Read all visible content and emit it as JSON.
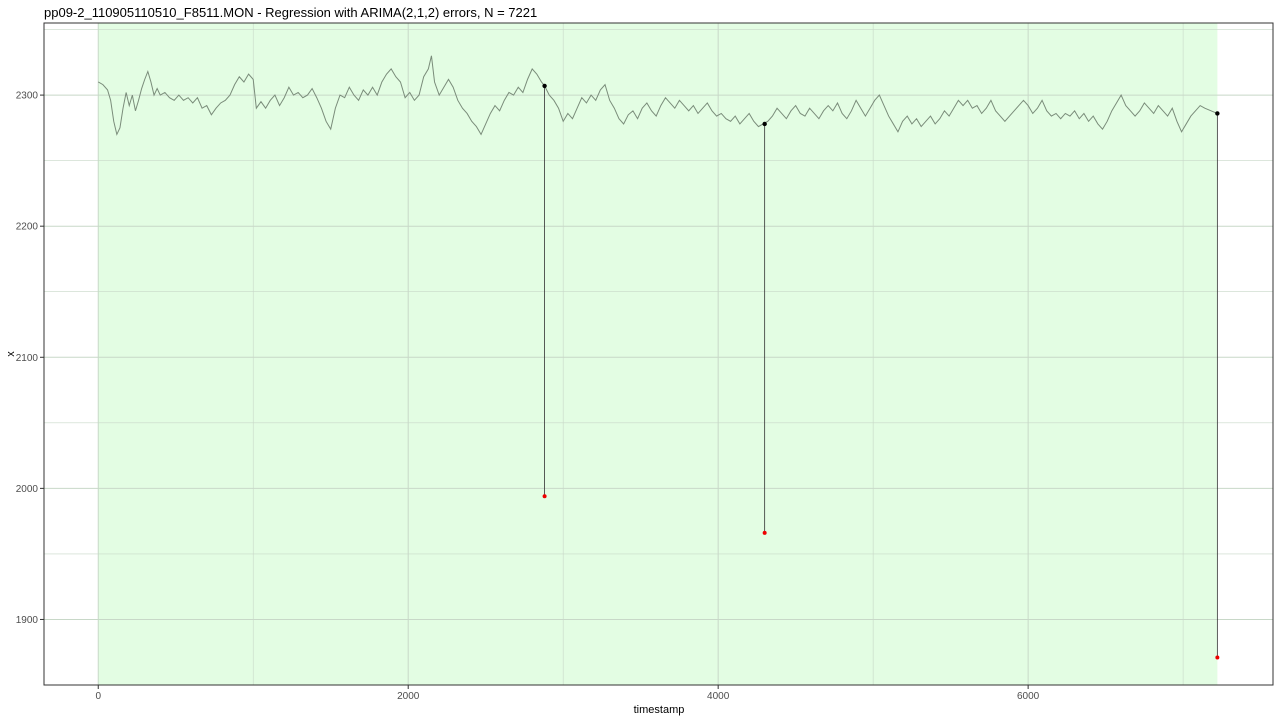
{
  "chart_data": {
    "type": "line",
    "title": "pp09-2_110905110510_F8511.MON - Regression with ARIMA(2,1,2) errors, N = 7221",
    "xlabel": "timestamp",
    "ylabel": "x",
    "xlim": [
      -350,
      7580
    ],
    "ylim": [
      1850,
      2355
    ],
    "x_ticks": [
      0,
      2000,
      4000,
      6000
    ],
    "x_tick_labels": [
      "0",
      "2000",
      "4000",
      "6000"
    ],
    "y_ticks": [
      1900,
      2000,
      2100,
      2200,
      2300
    ],
    "y_tick_labels": [
      "1900",
      "2000",
      "2100",
      "2200",
      "2300"
    ],
    "grid": true,
    "shaded_region": {
      "x_start": 0,
      "x_end": 7221,
      "color": "#e3fde3"
    },
    "series": [
      {
        "values": [
          [
            0,
            2310
          ],
          [
            30,
            2308
          ],
          [
            60,
            2304
          ],
          [
            80,
            2296
          ],
          [
            100,
            2280
          ],
          [
            120,
            2270
          ],
          [
            140,
            2275
          ],
          [
            160,
            2290
          ],
          [
            180,
            2302
          ],
          [
            200,
            2292
          ],
          [
            220,
            2300
          ],
          [
            240,
            2288
          ],
          [
            260,
            2296
          ],
          [
            280,
            2305
          ],
          [
            300,
            2312
          ],
          [
            320,
            2318
          ],
          [
            340,
            2310
          ],
          [
            360,
            2300
          ],
          [
            380,
            2305
          ],
          [
            400,
            2300
          ],
          [
            430,
            2302
          ],
          [
            460,
            2298
          ],
          [
            490,
            2296
          ],
          [
            520,
            2300
          ],
          [
            550,
            2296
          ],
          [
            580,
            2298
          ],
          [
            610,
            2294
          ],
          [
            640,
            2298
          ],
          [
            670,
            2290
          ],
          [
            700,
            2292
          ],
          [
            730,
            2285
          ],
          [
            760,
            2290
          ],
          [
            790,
            2294
          ],
          [
            820,
            2296
          ],
          [
            850,
            2300
          ],
          [
            880,
            2308
          ],
          [
            910,
            2314
          ],
          [
            940,
            2310
          ],
          [
            970,
            2316
          ],
          [
            1000,
            2312
          ],
          [
            1020,
            2290
          ],
          [
            1050,
            2295
          ],
          [
            1080,
            2290
          ],
          [
            1110,
            2296
          ],
          [
            1140,
            2300
          ],
          [
            1170,
            2292
          ],
          [
            1200,
            2298
          ],
          [
            1230,
            2306
          ],
          [
            1260,
            2300
          ],
          [
            1290,
            2302
          ],
          [
            1320,
            2298
          ],
          [
            1350,
            2300
          ],
          [
            1380,
            2305
          ],
          [
            1410,
            2298
          ],
          [
            1440,
            2290
          ],
          [
            1470,
            2280
          ],
          [
            1500,
            2274
          ],
          [
            1530,
            2290
          ],
          [
            1560,
            2300
          ],
          [
            1590,
            2298
          ],
          [
            1620,
            2306
          ],
          [
            1650,
            2300
          ],
          [
            1680,
            2296
          ],
          [
            1710,
            2304
          ],
          [
            1740,
            2300
          ],
          [
            1770,
            2306
          ],
          [
            1800,
            2300
          ],
          [
            1830,
            2310
          ],
          [
            1860,
            2316
          ],
          [
            1890,
            2320
          ],
          [
            1920,
            2314
          ],
          [
            1950,
            2310
          ],
          [
            1980,
            2298
          ],
          [
            2010,
            2302
          ],
          [
            2040,
            2296
          ],
          [
            2070,
            2300
          ],
          [
            2100,
            2314
          ],
          [
            2130,
            2320
          ],
          [
            2150,
            2330
          ],
          [
            2170,
            2310
          ],
          [
            2200,
            2300
          ],
          [
            2230,
            2306
          ],
          [
            2260,
            2312
          ],
          [
            2290,
            2306
          ],
          [
            2320,
            2296
          ],
          [
            2350,
            2290
          ],
          [
            2380,
            2286
          ],
          [
            2410,
            2280
          ],
          [
            2440,
            2276
          ],
          [
            2470,
            2270
          ],
          [
            2500,
            2278
          ],
          [
            2530,
            2286
          ],
          [
            2560,
            2292
          ],
          [
            2590,
            2288
          ],
          [
            2620,
            2296
          ],
          [
            2650,
            2302
          ],
          [
            2680,
            2300
          ],
          [
            2710,
            2306
          ],
          [
            2740,
            2302
          ],
          [
            2770,
            2312
          ],
          [
            2800,
            2320
          ],
          [
            2830,
            2316
          ],
          [
            2860,
            2310
          ],
          [
            2880,
            2307
          ],
          [
            2910,
            2300
          ],
          [
            2940,
            2296
          ],
          [
            2970,
            2290
          ],
          [
            3000,
            2280
          ],
          [
            3030,
            2286
          ],
          [
            3060,
            2282
          ],
          [
            3090,
            2290
          ],
          [
            3120,
            2298
          ],
          [
            3150,
            2294
          ],
          [
            3180,
            2300
          ],
          [
            3210,
            2296
          ],
          [
            3240,
            2304
          ],
          [
            3270,
            2308
          ],
          [
            3300,
            2296
          ],
          [
            3330,
            2290
          ],
          [
            3360,
            2282
          ],
          [
            3390,
            2278
          ],
          [
            3420,
            2285
          ],
          [
            3450,
            2288
          ],
          [
            3480,
            2282
          ],
          [
            3510,
            2290
          ],
          [
            3540,
            2294
          ],
          [
            3570,
            2288
          ],
          [
            3600,
            2284
          ],
          [
            3630,
            2292
          ],
          [
            3660,
            2298
          ],
          [
            3690,
            2294
          ],
          [
            3720,
            2290
          ],
          [
            3750,
            2296
          ],
          [
            3780,
            2292
          ],
          [
            3810,
            2288
          ],
          [
            3840,
            2292
          ],
          [
            3870,
            2286
          ],
          [
            3900,
            2290
          ],
          [
            3930,
            2294
          ],
          [
            3960,
            2288
          ],
          [
            3990,
            2284
          ],
          [
            4020,
            2286
          ],
          [
            4050,
            2282
          ],
          [
            4080,
            2280
          ],
          [
            4110,
            2284
          ],
          [
            4140,
            2278
          ],
          [
            4170,
            2282
          ],
          [
            4200,
            2286
          ],
          [
            4230,
            2280
          ],
          [
            4260,
            2276
          ],
          [
            4290,
            2278
          ],
          [
            4320,
            2280
          ],
          [
            4350,
            2284
          ],
          [
            4380,
            2290
          ],
          [
            4410,
            2286
          ],
          [
            4440,
            2282
          ],
          [
            4470,
            2288
          ],
          [
            4500,
            2292
          ],
          [
            4530,
            2286
          ],
          [
            4560,
            2284
          ],
          [
            4590,
            2290
          ],
          [
            4620,
            2286
          ],
          [
            4650,
            2282
          ],
          [
            4680,
            2288
          ],
          [
            4710,
            2292
          ],
          [
            4740,
            2288
          ],
          [
            4770,
            2294
          ],
          [
            4800,
            2286
          ],
          [
            4830,
            2282
          ],
          [
            4860,
            2288
          ],
          [
            4890,
            2296
          ],
          [
            4920,
            2290
          ],
          [
            4950,
            2284
          ],
          [
            4980,
            2290
          ],
          [
            5010,
            2296
          ],
          [
            5040,
            2300
          ],
          [
            5070,
            2292
          ],
          [
            5100,
            2284
          ],
          [
            5130,
            2278
          ],
          [
            5160,
            2272
          ],
          [
            5190,
            2280
          ],
          [
            5220,
            2284
          ],
          [
            5250,
            2278
          ],
          [
            5280,
            2282
          ],
          [
            5310,
            2276
          ],
          [
            5340,
            2280
          ],
          [
            5370,
            2284
          ],
          [
            5400,
            2278
          ],
          [
            5430,
            2282
          ],
          [
            5460,
            2288
          ],
          [
            5490,
            2284
          ],
          [
            5520,
            2290
          ],
          [
            5550,
            2296
          ],
          [
            5580,
            2292
          ],
          [
            5610,
            2296
          ],
          [
            5640,
            2290
          ],
          [
            5670,
            2292
          ],
          [
            5700,
            2286
          ],
          [
            5730,
            2290
          ],
          [
            5760,
            2296
          ],
          [
            5790,
            2288
          ],
          [
            5820,
            2284
          ],
          [
            5850,
            2280
          ],
          [
            5880,
            2284
          ],
          [
            5910,
            2288
          ],
          [
            5940,
            2292
          ],
          [
            5970,
            2296
          ],
          [
            6000,
            2292
          ],
          [
            6030,
            2286
          ],
          [
            6060,
            2290
          ],
          [
            6090,
            2296
          ],
          [
            6120,
            2288
          ],
          [
            6150,
            2284
          ],
          [
            6180,
            2286
          ],
          [
            6210,
            2282
          ],
          [
            6240,
            2286
          ],
          [
            6270,
            2284
          ],
          [
            6300,
            2288
          ],
          [
            6330,
            2282
          ],
          [
            6360,
            2286
          ],
          [
            6390,
            2280
          ],
          [
            6420,
            2284
          ],
          [
            6450,
            2278
          ],
          [
            6480,
            2274
          ],
          [
            6510,
            2280
          ],
          [
            6540,
            2288
          ],
          [
            6570,
            2294
          ],
          [
            6600,
            2300
          ],
          [
            6630,
            2292
          ],
          [
            6660,
            2288
          ],
          [
            6690,
            2284
          ],
          [
            6720,
            2288
          ],
          [
            6750,
            2294
          ],
          [
            6780,
            2290
          ],
          [
            6810,
            2286
          ],
          [
            6840,
            2292
          ],
          [
            6870,
            2288
          ],
          [
            6900,
            2284
          ],
          [
            6930,
            2290
          ],
          [
            6960,
            2280
          ],
          [
            6990,
            2272
          ],
          [
            7020,
            2278
          ],
          [
            7050,
            2284
          ],
          [
            7080,
            2288
          ],
          [
            7110,
            2292
          ],
          [
            7140,
            2290
          ],
          [
            7180,
            2288
          ],
          [
            7221,
            2286
          ]
        ]
      }
    ],
    "outliers": [
      {
        "x": 2880,
        "fitted": 2307,
        "observed": 1994
      },
      {
        "x": 4300,
        "fitted": 2278,
        "observed": 1966
      },
      {
        "x": 7221,
        "fitted": 2286,
        "observed": 1871
      }
    ],
    "colors": {
      "line": "#7a8c7a",
      "grid": "#c8d8c8",
      "grid_outside": "#e5e5e5",
      "border": "#333333",
      "shade": "#e3fde3",
      "fitted_point": "#000000",
      "observed_point": "#ee0000",
      "segment": "#333333"
    }
  }
}
